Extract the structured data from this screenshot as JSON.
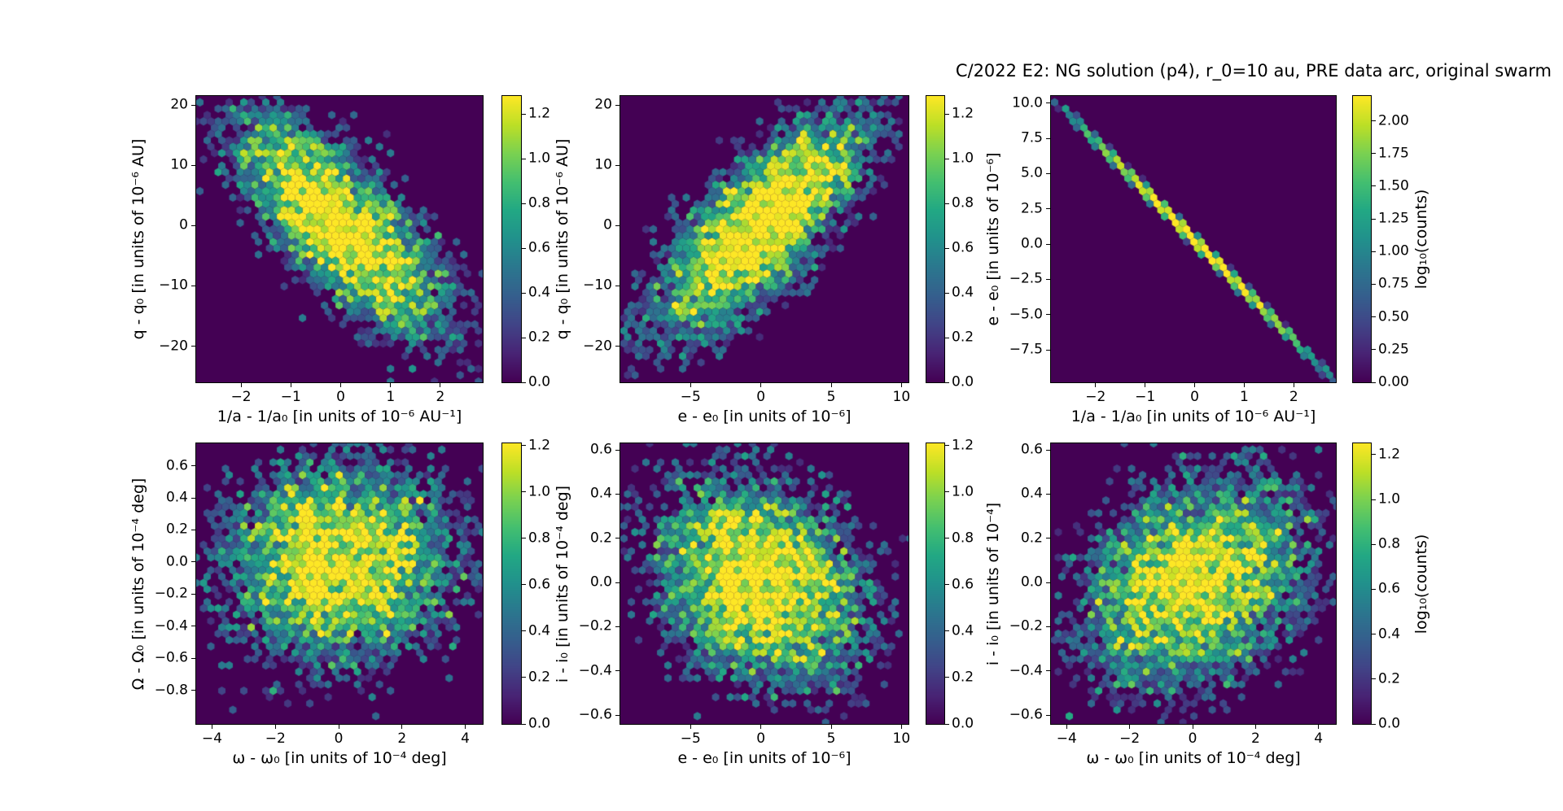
{
  "title": "C/2022 E2: NG solution (p4), r_0=10 au, PRE data arc, original swarm",
  "colormap": "viridis",
  "colors": {
    "background": "#ffffff",
    "hexbin_min": "#440154",
    "hexbin_max": "#fde725",
    "axis": "#000000"
  },
  "chart_data": [
    {
      "type": "hexbin",
      "id": "q-vs-inva",
      "position": "top-left",
      "xlabel": "1/a - 1/a₀ [in units of 10⁻⁶ AU⁻¹]",
      "ylabel": "q - q₀ [in units of 10⁻⁶ AU]",
      "xlim": [
        -2.9,
        2.85
      ],
      "ylim": [
        -26.0,
        21.5
      ],
      "xtick_values": [
        -2,
        -1,
        0,
        1,
        2
      ],
      "xtick_labels": [
        "−2",
        "−1",
        "0",
        "1",
        "2"
      ],
      "ytick_values": [
        20,
        10,
        0,
        -10,
        -20
      ],
      "ytick_labels": [
        "20",
        "10",
        "0",
        "−10",
        "−20"
      ],
      "colorbar": {
        "vmax": 1.28,
        "tick_values": [
          0.0,
          0.2,
          0.4,
          0.6,
          0.8,
          1.0,
          1.2
        ],
        "tick_labels": [
          "0.0",
          "0.2",
          "0.4",
          "0.6",
          "0.8",
          "1.0",
          "1.2"
        ],
        "label": null
      },
      "correlation": "negative",
      "distribution": {
        "kind": "gaussian",
        "n": 6000,
        "sigma_x": 0.95,
        "sigma_y": 8.3,
        "rho": -0.75,
        "seed": 7
      }
    },
    {
      "type": "hexbin",
      "id": "q-vs-e",
      "position": "top-middle",
      "xlabel": "e - e₀ [in units of 10⁻⁶]",
      "ylabel": "q - q₀ [in units of 10⁻⁶ AU]",
      "xlim": [
        -10.0,
        10.5
      ],
      "ylim": [
        -26.0,
        21.5
      ],
      "xtick_values": [
        -5,
        0,
        5,
        10
      ],
      "xtick_labels": [
        "−5",
        "0",
        "5",
        "10"
      ],
      "ytick_values": [
        20,
        10,
        0,
        -10,
        -20
      ],
      "ytick_labels": [
        "20",
        "10",
        "0",
        "−10",
        "−20"
      ],
      "colorbar": {
        "vmax": 1.28,
        "tick_values": [
          0.0,
          0.2,
          0.4,
          0.6,
          0.8,
          1.0,
          1.2
        ],
        "tick_labels": [
          "0.0",
          "0.2",
          "0.4",
          "0.6",
          "0.8",
          "1.0",
          "1.2"
        ],
        "label": null
      },
      "correlation": "positive",
      "distribution": {
        "kind": "gaussian",
        "n": 6000,
        "sigma_x": 3.4,
        "sigma_y": 8.3,
        "rho": 0.75,
        "seed": 13
      }
    },
    {
      "type": "hexbin",
      "id": "e-vs-inva",
      "position": "top-right",
      "xlabel": "1/a - 1/a₀ [in units of 10⁻⁶ AU⁻¹]",
      "ylabel": "e - e₀ [in units of 10⁻⁶]",
      "xlim": [
        -2.9,
        2.85
      ],
      "ylim": [
        -9.8,
        10.5
      ],
      "xtick_values": [
        -2,
        -1,
        0,
        1,
        2
      ],
      "xtick_labels": [
        "−2",
        "−1",
        "0",
        "1",
        "2"
      ],
      "ytick_values": [
        10.0,
        7.5,
        5.0,
        2.5,
        0.0,
        -2.5,
        -5.0,
        -7.5
      ],
      "ytick_labels": [
        "10.0",
        "7.5",
        "5.0",
        "2.5",
        "0.0",
        "−2.5",
        "−5.0",
        "−7.5"
      ],
      "colorbar": {
        "vmax": 2.19,
        "tick_values": [
          0.0,
          0.25,
          0.5,
          0.75,
          1.0,
          1.25,
          1.5,
          1.75,
          2.0
        ],
        "tick_labels": [
          "0.00",
          "0.25",
          "0.50",
          "0.75",
          "1.00",
          "1.25",
          "1.50",
          "1.75",
          "2.00"
        ],
        "label": "log₁₀(counts)"
      },
      "correlation": "perfect-negative-line",
      "distribution": {
        "kind": "line",
        "n": 6000,
        "sigma_x": 1.05,
        "noise": 0.1,
        "seed": 21
      }
    },
    {
      "type": "hexbin",
      "id": "node-vs-argperi",
      "position": "bottom-left",
      "xlabel": "ω - ω₀ [in units of 10⁻⁴ deg]",
      "ylabel": "Ω - Ω₀ [in units of 10⁻⁴ deg]",
      "xlim": [
        -4.5,
        4.55
      ],
      "ylim": [
        -1.01,
        0.74
      ],
      "xtick_values": [
        -4,
        -2,
        0,
        2,
        4
      ],
      "xtick_labels": [
        "−4",
        "−2",
        "0",
        "2",
        "4"
      ],
      "ytick_values": [
        0.6,
        0.4,
        0.2,
        0.0,
        -0.2,
        -0.4,
        -0.6,
        -0.8
      ],
      "ytick_labels": [
        "0.6",
        "0.4",
        "0.2",
        "0.0",
        "−0.2",
        "−0.4",
        "−0.6",
        "−0.8"
      ],
      "colorbar": {
        "vmax": 1.21,
        "tick_values": [
          0.0,
          0.2,
          0.4,
          0.6,
          0.8,
          1.0,
          1.2
        ],
        "tick_labels": [
          "0.0",
          "0.2",
          "0.4",
          "0.6",
          "0.8",
          "1.0",
          "1.2"
        ],
        "label": null
      },
      "correlation": "none",
      "distribution": {
        "kind": "gaussian",
        "n": 6000,
        "sigma_x": 1.6,
        "sigma_y": 0.28,
        "rho": 0.03,
        "seed": 31
      }
    },
    {
      "type": "hexbin",
      "id": "incl-vs-e",
      "position": "bottom-middle",
      "xlabel": "e - e₀ [in units of 10⁻⁶]",
      "ylabel": "i - i₀ [in units of 10⁻⁴ deg]",
      "xlim": [
        -10.0,
        10.5
      ],
      "ylim": [
        -0.64,
        0.63
      ],
      "xtick_values": [
        -5,
        0,
        5,
        10
      ],
      "xtick_labels": [
        "−5",
        "0",
        "5",
        "10"
      ],
      "ytick_values": [
        0.6,
        0.4,
        0.2,
        0.0,
        -0.2,
        -0.4,
        -0.6
      ],
      "ytick_labels": [
        "0.6",
        "0.4",
        "0.2",
        "0.0",
        "−0.2",
        "−0.4",
        "−0.6"
      ],
      "colorbar": {
        "vmax": 1.21,
        "tick_values": [
          0.0,
          0.2,
          0.4,
          0.6,
          0.8,
          1.0,
          1.2
        ],
        "tick_labels": [
          "0.0",
          "0.2",
          "0.4",
          "0.6",
          "0.8",
          "1.0",
          "1.2"
        ],
        "label": null
      },
      "correlation": "weak-negative",
      "distribution": {
        "kind": "gaussian",
        "n": 6000,
        "sigma_x": 3.3,
        "sigma_y": 0.21,
        "rho": -0.25,
        "seed": 41
      }
    },
    {
      "type": "hexbin",
      "id": "incl-vs-argperi",
      "position": "bottom-right",
      "xlabel": "ω - ω₀ [in units of 10⁻⁴ deg]",
      "ylabel": "i - i₀ [in units of 10⁻⁴]",
      "xlim": [
        -4.5,
        4.55
      ],
      "ylim": [
        -0.64,
        0.63
      ],
      "xtick_values": [
        -4,
        -2,
        0,
        2,
        4
      ],
      "xtick_labels": [
        "−4",
        "−2",
        "0",
        "2",
        "4"
      ],
      "ytick_values": [
        0.6,
        0.4,
        0.2,
        0.0,
        -0.2,
        -0.4,
        -0.6
      ],
      "ytick_labels": [
        "0.6",
        "0.4",
        "0.2",
        "0.0",
        "−0.2",
        "−0.4",
        "−0.6"
      ],
      "colorbar": {
        "vmax": 1.25,
        "tick_values": [
          0.0,
          0.2,
          0.4,
          0.6,
          0.8,
          1.0,
          1.2
        ],
        "tick_labels": [
          "0.0",
          "0.2",
          "0.4",
          "0.6",
          "0.8",
          "1.0",
          "1.2"
        ],
        "label": "log₁₀(counts)"
      },
      "correlation": "weak-positive",
      "distribution": {
        "kind": "gaussian",
        "n": 6000,
        "sigma_x": 1.6,
        "sigma_y": 0.21,
        "rho": 0.3,
        "seed": 51
      }
    }
  ]
}
